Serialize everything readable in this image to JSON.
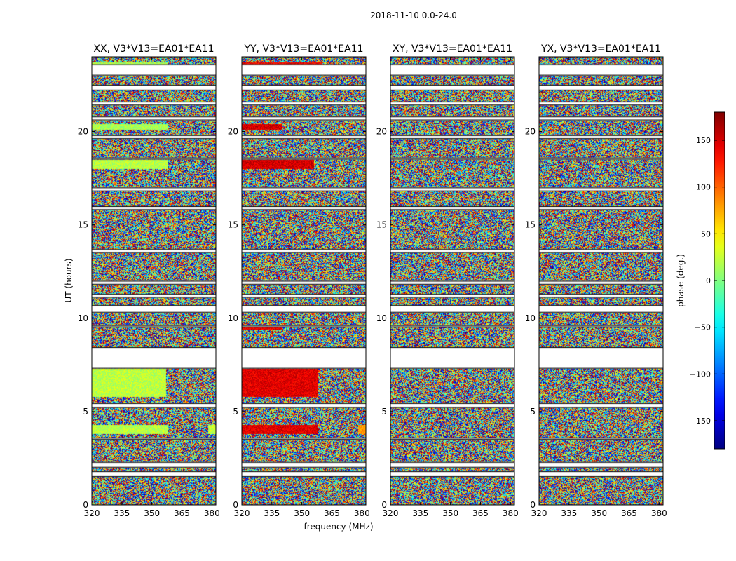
{
  "figure_title": "2018-11-10 0.0-24.0",
  "chart_data": {
    "type": "heatmap",
    "quantity": "visibility phase",
    "x": {
      "label": "frequency (MHz)",
      "range": [
        320,
        382
      ],
      "ticks": [
        320,
        335,
        350,
        365,
        380
      ]
    },
    "y": {
      "label": "UT (hours)",
      "range": [
        0,
        24
      ],
      "ticks": [
        0,
        5,
        10,
        15,
        20
      ]
    },
    "colorbar": {
      "label": "phase (deg.)",
      "range": [
        -180,
        180
      ],
      "ticks": [
        -150,
        -100,
        -50,
        0,
        50,
        100,
        150
      ],
      "colormap": "jet"
    },
    "time_gaps_hours": [
      [
        1.5,
        1.8
      ],
      [
        2.0,
        2.3
      ],
      [
        3.5,
        3.6
      ],
      [
        5.2,
        5.45
      ],
      [
        7.3,
        8.45
      ],
      [
        9.5,
        9.6
      ],
      [
        10.3,
        10.7
      ],
      [
        11.1,
        11.3
      ],
      [
        11.8,
        12.0
      ],
      [
        13.5,
        13.7
      ],
      [
        15.8,
        16.0
      ],
      [
        16.8,
        17.0
      ],
      [
        18.5,
        18.6
      ],
      [
        19.6,
        19.8
      ],
      [
        20.6,
        20.8
      ],
      [
        21.4,
        21.6
      ],
      [
        22.2,
        22.5
      ],
      [
        23.0,
        23.6
      ]
    ],
    "panels": [
      {
        "title": "XX, V3*V13=EA01*EA11",
        "panel": "xx",
        "smooth_bands": [
          {
            "t": [
              23.2,
              23.7
            ],
            "f": [
              320,
              358
            ],
            "phase": 15
          },
          {
            "t": [
              20.1,
              20.4
            ],
            "f": [
              320,
              358
            ],
            "phase": 15
          },
          {
            "t": [
              18.0,
              18.5
            ],
            "f": [
              320,
              358
            ],
            "phase": 20
          },
          {
            "t": [
              5.8,
              7.3
            ],
            "f": [
              320,
              357
            ],
            "phase": 22
          },
          {
            "t": [
              3.8,
              4.3
            ],
            "f": [
              320,
              358
            ],
            "phase": 20
          },
          {
            "t": [
              3.8,
              4.3
            ],
            "f": [
              378,
              382
            ],
            "phase": 25
          }
        ]
      },
      {
        "title": "YY, V3*V13=EA01*EA11",
        "panel": "yy",
        "smooth_bands": [
          {
            "t": [
              23.2,
              23.7
            ],
            "f": [
              320,
              360
            ],
            "phase": 140
          },
          {
            "t": [
              20.1,
              20.4
            ],
            "f": [
              320,
              340
            ],
            "phase": 150
          },
          {
            "t": [
              18.0,
              18.5
            ],
            "f": [
              320,
              356
            ],
            "phase": 150
          },
          {
            "t": [
              5.8,
              7.3
            ],
            "f": [
              320,
              358
            ],
            "phase": 145
          },
          {
            "t": [
              3.8,
              4.3
            ],
            "f": [
              320,
              358
            ],
            "phase": 145
          },
          {
            "t": [
              3.8,
              4.3
            ],
            "f": [
              378,
              382
            ],
            "phase": 80
          },
          {
            "t": [
              9.4,
              9.6
            ],
            "f": [
              320,
              340
            ],
            "phase": 140
          }
        ]
      },
      {
        "title": "XY, V3*V13=EA01*EA11",
        "panel": "xy",
        "smooth_bands": []
      },
      {
        "title": "YX, V3*V13=EA01*EA11",
        "panel": "yx",
        "smooth_bands": []
      }
    ]
  }
}
